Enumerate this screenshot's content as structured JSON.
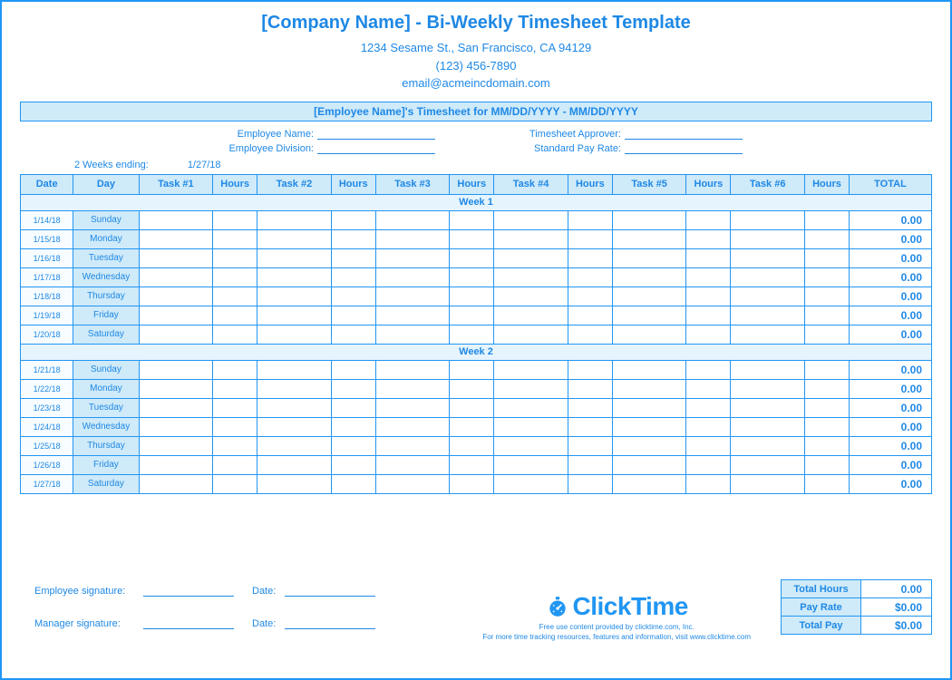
{
  "header": {
    "title": "[Company Name] - Bi-Weekly Timesheet Template",
    "address": "1234 Sesame St., San Francisco, CA 94129",
    "phone": "(123) 456-7890",
    "email": "email@acmeincdomain.com",
    "subtitle": "[Employee Name]'s Timesheet for MM/DD/YYYY - MM/DD/YYYY"
  },
  "fields": {
    "employee_name_label": "Employee Name:",
    "employee_division_label": "Employee Division:",
    "approver_label": "Timesheet Approver:",
    "pay_rate_label": "Standard Pay Rate:",
    "weeks_ending_label": "2 Weeks ending:",
    "weeks_ending_value": "1/27/18"
  },
  "columns": [
    "Date",
    "Day",
    "Task #1",
    "Hours",
    "Task #2",
    "Hours",
    "Task #3",
    "Hours",
    "Task #4",
    "Hours",
    "Task #5",
    "Hours",
    "Task #6",
    "Hours",
    "TOTAL"
  ],
  "week1_label": "Week 1",
  "week2_label": "Week 2",
  "week1": [
    {
      "date": "1/14/18",
      "day": "Sunday",
      "total": "0.00"
    },
    {
      "date": "1/15/18",
      "day": "Monday",
      "total": "0.00"
    },
    {
      "date": "1/16/18",
      "day": "Tuesday",
      "total": "0.00"
    },
    {
      "date": "1/17/18",
      "day": "Wednesday",
      "total": "0.00"
    },
    {
      "date": "1/18/18",
      "day": "Thursday",
      "total": "0.00"
    },
    {
      "date": "1/19/18",
      "day": "Friday",
      "total": "0.00"
    },
    {
      "date": "1/20/18",
      "day": "Saturday",
      "total": "0.00"
    }
  ],
  "week2": [
    {
      "date": "1/21/18",
      "day": "Sunday",
      "total": "0.00"
    },
    {
      "date": "1/22/18",
      "day": "Monday",
      "total": "0.00"
    },
    {
      "date": "1/23/18",
      "day": "Tuesday",
      "total": "0.00"
    },
    {
      "date": "1/24/18",
      "day": "Wednesday",
      "total": "0.00"
    },
    {
      "date": "1/25/18",
      "day": "Thursday",
      "total": "0.00"
    },
    {
      "date": "1/26/18",
      "day": "Friday",
      "total": "0.00"
    },
    {
      "date": "1/27/18",
      "day": "Saturday",
      "total": "0.00"
    }
  ],
  "summary": {
    "total_hours_label": "Total Hours",
    "total_hours_value": "0.00",
    "pay_rate_label": "Pay Rate",
    "pay_rate_value": "$0.00",
    "total_pay_label": "Total Pay",
    "total_pay_value": "$0.00"
  },
  "signatures": {
    "employee_label": "Employee signature:",
    "manager_label": "Manager signature:",
    "date_label": "Date:"
  },
  "logo": {
    "text": "ClickTime"
  },
  "footer": {
    "line1": "Free use content provided by clicktime.com, Inc.",
    "line2": "For more time tracking resources, features and information, visit www.clicktime.com"
  },
  "styling": {
    "primary_color": "#2196f3",
    "accent_color": "#1e88e5",
    "header_bg": "#cfeaf9",
    "light_bg": "#e6f4fd",
    "very_light_bg": "#f6fcff",
    "border_color": "#2196f3",
    "font_family": "Arial",
    "title_fontsize": 20,
    "body_fontsize": 11,
    "table_fontsize": 10
  }
}
